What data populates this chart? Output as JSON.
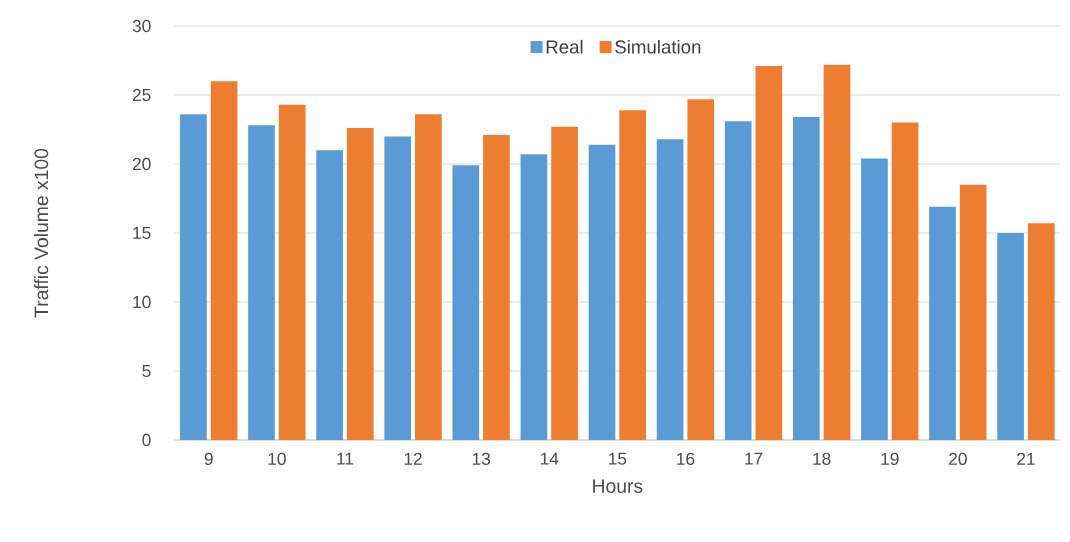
{
  "chart_data": {
    "type": "bar",
    "xlabel": "Hours",
    "ylabel": "Traffic Volume    x100",
    "categories": [
      "9",
      "10",
      "11",
      "12",
      "13",
      "14",
      "15",
      "16",
      "17",
      "18",
      "19",
      "20",
      "21"
    ],
    "series": [
      {
        "name": "Real",
        "color": "#5b9bd5",
        "values": [
          23.6,
          22.8,
          21.0,
          22.0,
          19.9,
          20.7,
          21.4,
          21.8,
          23.1,
          23.4,
          20.4,
          16.9,
          15.0
        ]
      },
      {
        "name": "Simulation",
        "color": "#ed7d31",
        "values": [
          26.0,
          24.3,
          22.6,
          23.6,
          22.1,
          22.7,
          23.9,
          24.7,
          27.1,
          27.2,
          23.0,
          18.5,
          15.7
        ]
      }
    ],
    "ylim": [
      0,
      30
    ],
    "yticks": [
      0,
      5,
      10,
      15,
      20,
      25,
      30
    ],
    "grid": "y",
    "legend": "top"
  }
}
